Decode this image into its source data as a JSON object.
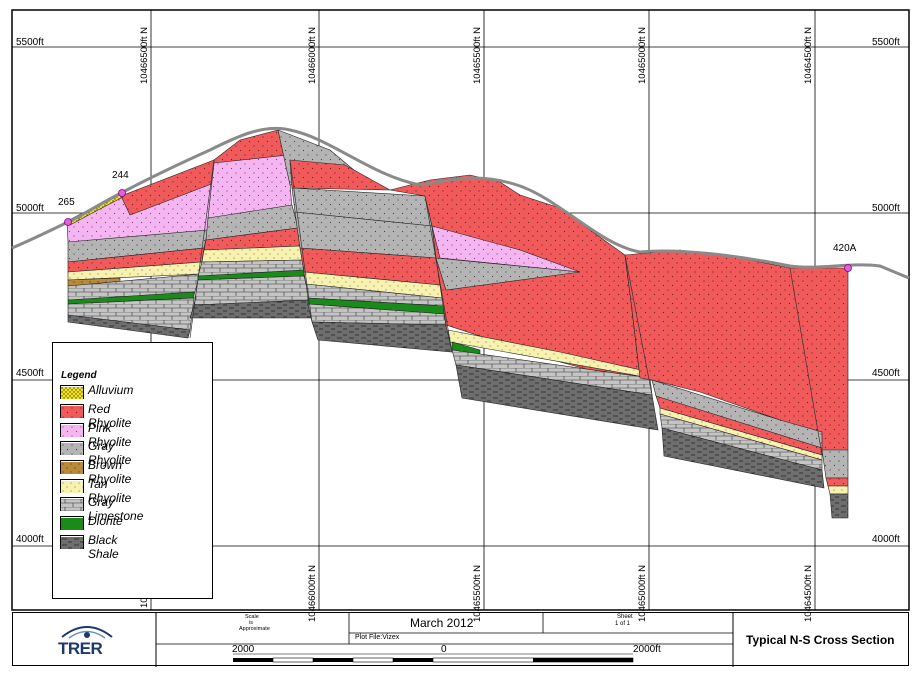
{
  "section": {
    "elevation_labels": [
      "5500ft",
      "5000ft",
      "4500ft",
      "4000ft"
    ],
    "northing_labels_top": [
      "10466500ft N",
      "10466000ft N",
      "10465500ft N",
      "10465000ft N",
      "10464500ft N"
    ],
    "northing_labels_bottom": [
      "10466000ft N",
      "10465500ft N",
      "10465000ft N",
      "10464500ft N"
    ],
    "northing_partial_label": "10",
    "wells": [
      "265",
      "244",
      "420A"
    ]
  },
  "legend": {
    "title": "Legend",
    "items": [
      {
        "label": "Alluvium",
        "pattern": "alluvium"
      },
      {
        "label": "Red Rhyolite",
        "pattern": "red"
      },
      {
        "label": "Pink Rhyolite",
        "pattern": "pink"
      },
      {
        "label": "Gray Rhyolite",
        "pattern": "grayrhy"
      },
      {
        "label": "Brown Rhyolite",
        "pattern": "brown"
      },
      {
        "label": "Tan Rhyolite",
        "pattern": "tan"
      },
      {
        "label": "Gray Limestone",
        "pattern": "limestone"
      },
      {
        "label": "Diorite",
        "pattern": "diorite"
      },
      {
        "label": "Black Shale",
        "pattern": "shale"
      }
    ]
  },
  "title_block": {
    "logo_text": "TRER",
    "scale_line1": "Scale",
    "scale_line2": "is",
    "scale_line3": "Approximate",
    "date": "March 2012",
    "plot_file": "Plot File:Vizex",
    "sheet_line1": "Sheet",
    "sheet_line2": "1 of 1",
    "section_title": "Typical N-S Cross Section",
    "scale_left": "2000",
    "scale_mid": "0",
    "scale_right": "2000ft"
  },
  "colors": {
    "red": "#f05a5a",
    "pink": "#f4b5f0",
    "grayrhy": "#b4b4b4",
    "brown": "#b88a3c",
    "tan": "#f7f2b0",
    "limestone": "#c4c4c4",
    "diorite": "#1a8a1a",
    "shale": "#6e6e6e",
    "alluvium": "#f5e51a",
    "well": "#e060e0"
  }
}
